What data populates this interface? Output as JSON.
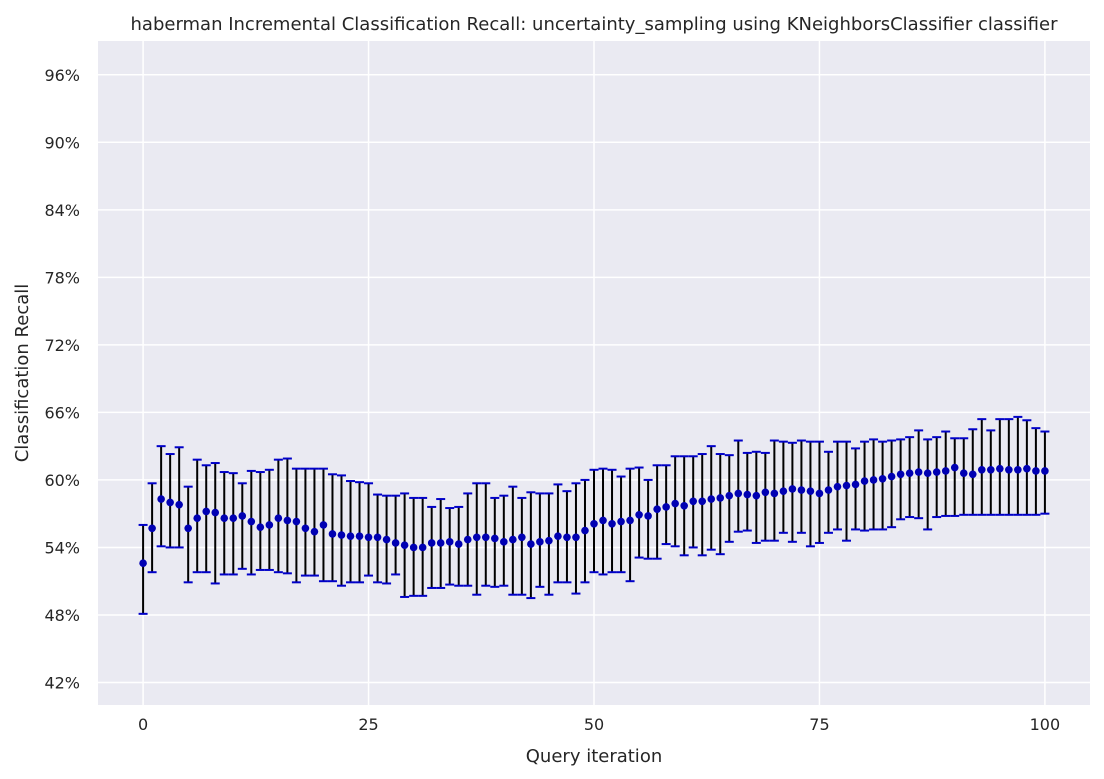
{
  "chart_data": {
    "type": "scatter",
    "title": "haberman Incremental Classification Recall: uncertainty_sampling using KNeighborsClassifier classifier",
    "xlabel": "Query iteration",
    "ylabel": "Classification Recall",
    "xlim": [
      -5,
      105
    ],
    "ylim": [
      40,
      99
    ],
    "x_ticks": [
      0,
      25,
      50,
      75,
      100
    ],
    "x_tick_labels": [
      "0",
      "25",
      "50",
      "75",
      "100"
    ],
    "y_ticks": [
      42,
      48,
      54,
      60,
      66,
      72,
      78,
      84,
      90,
      96
    ],
    "y_tick_labels": [
      "42%",
      "48%",
      "54%",
      "60%",
      "66%",
      "72%",
      "78%",
      "84%",
      "90%",
      "96%"
    ],
    "grid": true,
    "legend": "none",
    "colors": {
      "background": "#eaeaf2",
      "grid": "#ffffff",
      "marker": "#0000b3",
      "errorbar": "#000000",
      "cap": "#0000c8"
    },
    "series": [
      {
        "x": [
          0,
          1,
          2,
          3,
          4,
          5,
          6,
          7,
          8,
          9,
          10,
          11,
          12,
          13,
          14,
          15,
          16,
          17,
          18,
          19,
          20,
          21,
          22,
          23,
          24,
          25,
          26,
          27,
          28,
          29,
          30,
          31,
          32,
          33,
          34,
          35,
          36,
          37,
          38,
          39,
          40,
          41,
          42,
          43,
          44,
          45,
          46,
          47,
          48,
          49,
          50,
          51,
          52,
          53,
          54,
          55,
          56,
          57,
          58,
          59,
          60,
          61,
          62,
          63,
          64,
          65,
          66,
          67,
          68,
          69,
          70,
          71,
          72,
          73,
          74,
          75,
          76,
          77,
          78,
          79,
          80,
          81,
          82,
          83,
          84,
          85,
          86,
          87,
          88,
          89,
          90,
          91,
          92,
          93,
          94,
          95,
          96,
          97,
          98,
          99,
          100
        ],
        "y": [
          52.6,
          55.7,
          58.3,
          58.0,
          57.8,
          55.7,
          56.6,
          57.2,
          57.1,
          56.6,
          56.6,
          56.8,
          56.3,
          55.8,
          56.0,
          56.6,
          56.4,
          56.3,
          55.7,
          55.4,
          56.0,
          55.2,
          55.1,
          55.0,
          55.0,
          54.9,
          54.9,
          54.7,
          54.4,
          54.2,
          54.0,
          54.0,
          54.4,
          54.4,
          54.5,
          54.3,
          54.7,
          54.9,
          54.9,
          54.8,
          54.5,
          54.7,
          54.9,
          54.3,
          54.5,
          54.6,
          55.0,
          54.9,
          54.9,
          55.5,
          56.1,
          56.4,
          56.1,
          56.3,
          56.4,
          56.9,
          56.8,
          57.4,
          57.6,
          57.9,
          57.7,
          58.1,
          58.1,
          58.3,
          58.4,
          58.6,
          58.8,
          58.7,
          58.6,
          58.9,
          58.8,
          59.0,
          59.2,
          59.1,
          59.0,
          58.8,
          59.1,
          59.4,
          59.5,
          59.6,
          59.9,
          60.0,
          60.1,
          60.3,
          60.5,
          60.6,
          60.7,
          60.6,
          60.7,
          60.8,
          61.1,
          60.6,
          60.5,
          60.9,
          60.9,
          61.0,
          60.9,
          60.9,
          61.0,
          60.8,
          60.8
        ],
        "err_low": [
          48.1,
          51.8,
          54.1,
          54.0,
          54.0,
          50.9,
          51.8,
          51.8,
          50.8,
          51.6,
          51.6,
          52.1,
          51.6,
          52.0,
          52.0,
          51.8,
          51.7,
          50.9,
          51.5,
          51.5,
          51.0,
          51.0,
          50.6,
          50.9,
          50.9,
          51.5,
          50.9,
          50.8,
          51.6,
          49.6,
          49.7,
          49.7,
          50.4,
          50.4,
          50.7,
          50.6,
          50.6,
          49.8,
          50.6,
          50.5,
          50.6,
          49.8,
          49.8,
          49.5,
          50.5,
          49.8,
          50.9,
          50.9,
          49.9,
          50.9,
          51.8,
          51.6,
          51.8,
          51.8,
          51.0,
          53.1,
          53.0,
          53.0,
          54.3,
          54.1,
          53.3,
          54.0,
          53.3,
          53.8,
          53.4,
          54.5,
          55.4,
          55.5,
          54.4,
          54.6,
          54.6,
          55.3,
          54.5,
          55.3,
          54.1,
          54.4,
          55.3,
          55.6,
          54.6,
          55.6,
          55.5,
          55.6,
          55.6,
          55.8,
          56.5,
          56.7,
          56.6,
          55.6,
          56.7,
          56.8,
          56.8,
          56.9,
          56.9,
          56.9,
          56.9,
          56.9,
          56.9,
          56.9,
          56.9,
          56.9,
          57.0
        ],
        "err_high": [
          56.0,
          59.7,
          63.0,
          62.3,
          62.9,
          59.4,
          61.8,
          61.3,
          61.5,
          60.7,
          60.6,
          59.7,
          60.8,
          60.7,
          60.9,
          61.8,
          61.9,
          61.0,
          61.0,
          61.0,
          61.0,
          60.5,
          60.4,
          59.9,
          59.8,
          59.7,
          58.7,
          58.6,
          58.6,
          58.8,
          58.4,
          58.4,
          57.6,
          58.3,
          57.5,
          57.6,
          58.8,
          59.7,
          59.7,
          58.4,
          58.6,
          59.4,
          58.4,
          58.9,
          58.8,
          58.8,
          59.6,
          59.0,
          59.7,
          60.0,
          60.9,
          61.0,
          60.9,
          60.3,
          61.0,
          61.1,
          60.0,
          61.3,
          61.3,
          62.1,
          62.1,
          62.1,
          62.3,
          63.0,
          62.3,
          62.2,
          63.5,
          62.4,
          62.5,
          62.4,
          63.5,
          63.4,
          63.3,
          63.5,
          63.4,
          63.4,
          62.5,
          63.4,
          63.4,
          62.8,
          63.4,
          63.6,
          63.4,
          63.5,
          63.6,
          63.8,
          64.4,
          63.6,
          63.8,
          64.3,
          63.7,
          63.7,
          64.5,
          65.4,
          64.4,
          65.4,
          65.4,
          65.6,
          65.3,
          64.6,
          64.3
        ]
      }
    ]
  }
}
